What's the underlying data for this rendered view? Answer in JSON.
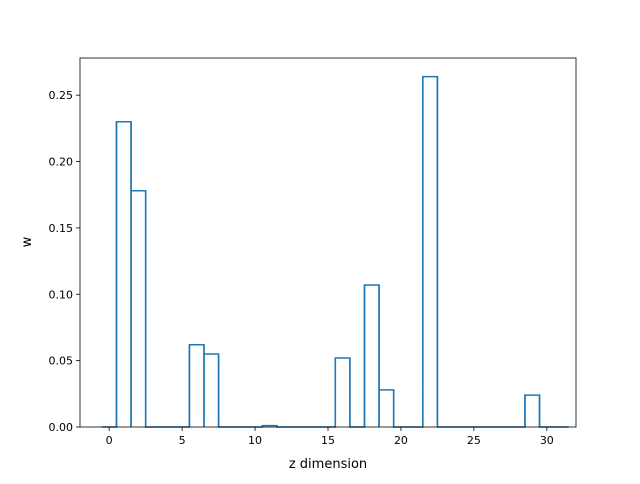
{
  "chart_data": {
    "type": "bar",
    "style": "step-histogram",
    "xlabel": "z dimension",
    "ylabel": "w",
    "xlim": [
      -2.0,
      32.0
    ],
    "ylim": [
      0.0,
      0.278
    ],
    "x_ticks": [
      0,
      5,
      10,
      15,
      20,
      25,
      30
    ],
    "x_tick_labels": [
      "0",
      "5",
      "10",
      "15",
      "20",
      "25",
      "30"
    ],
    "y_ticks": [
      0.0,
      0.05,
      0.1,
      0.15,
      0.2,
      0.25
    ],
    "y_tick_labels": [
      "0.00",
      "0.05",
      "0.10",
      "0.15",
      "0.20",
      "0.25"
    ],
    "grid": false,
    "legend": "none",
    "color": "#1f77b4",
    "x": [
      0,
      1,
      2,
      3,
      4,
      5,
      6,
      7,
      8,
      9,
      10,
      11,
      12,
      13,
      14,
      15,
      16,
      17,
      18,
      19,
      20,
      21,
      22,
      23,
      24,
      25,
      26,
      27,
      28,
      29,
      30,
      31
    ],
    "values": [
      0.0,
      0.23,
      0.178,
      0.0,
      0.0,
      0.0,
      0.062,
      0.055,
      0.0,
      0.0,
      0.0,
      0.001,
      0.0,
      0.0,
      0.0,
      0.0,
      0.052,
      0.0,
      0.107,
      0.028,
      0.0,
      0.0,
      0.264,
      0.0,
      0.0,
      0.0,
      0.0,
      0.0,
      0.0,
      0.024,
      0.0,
      0.0
    ]
  }
}
